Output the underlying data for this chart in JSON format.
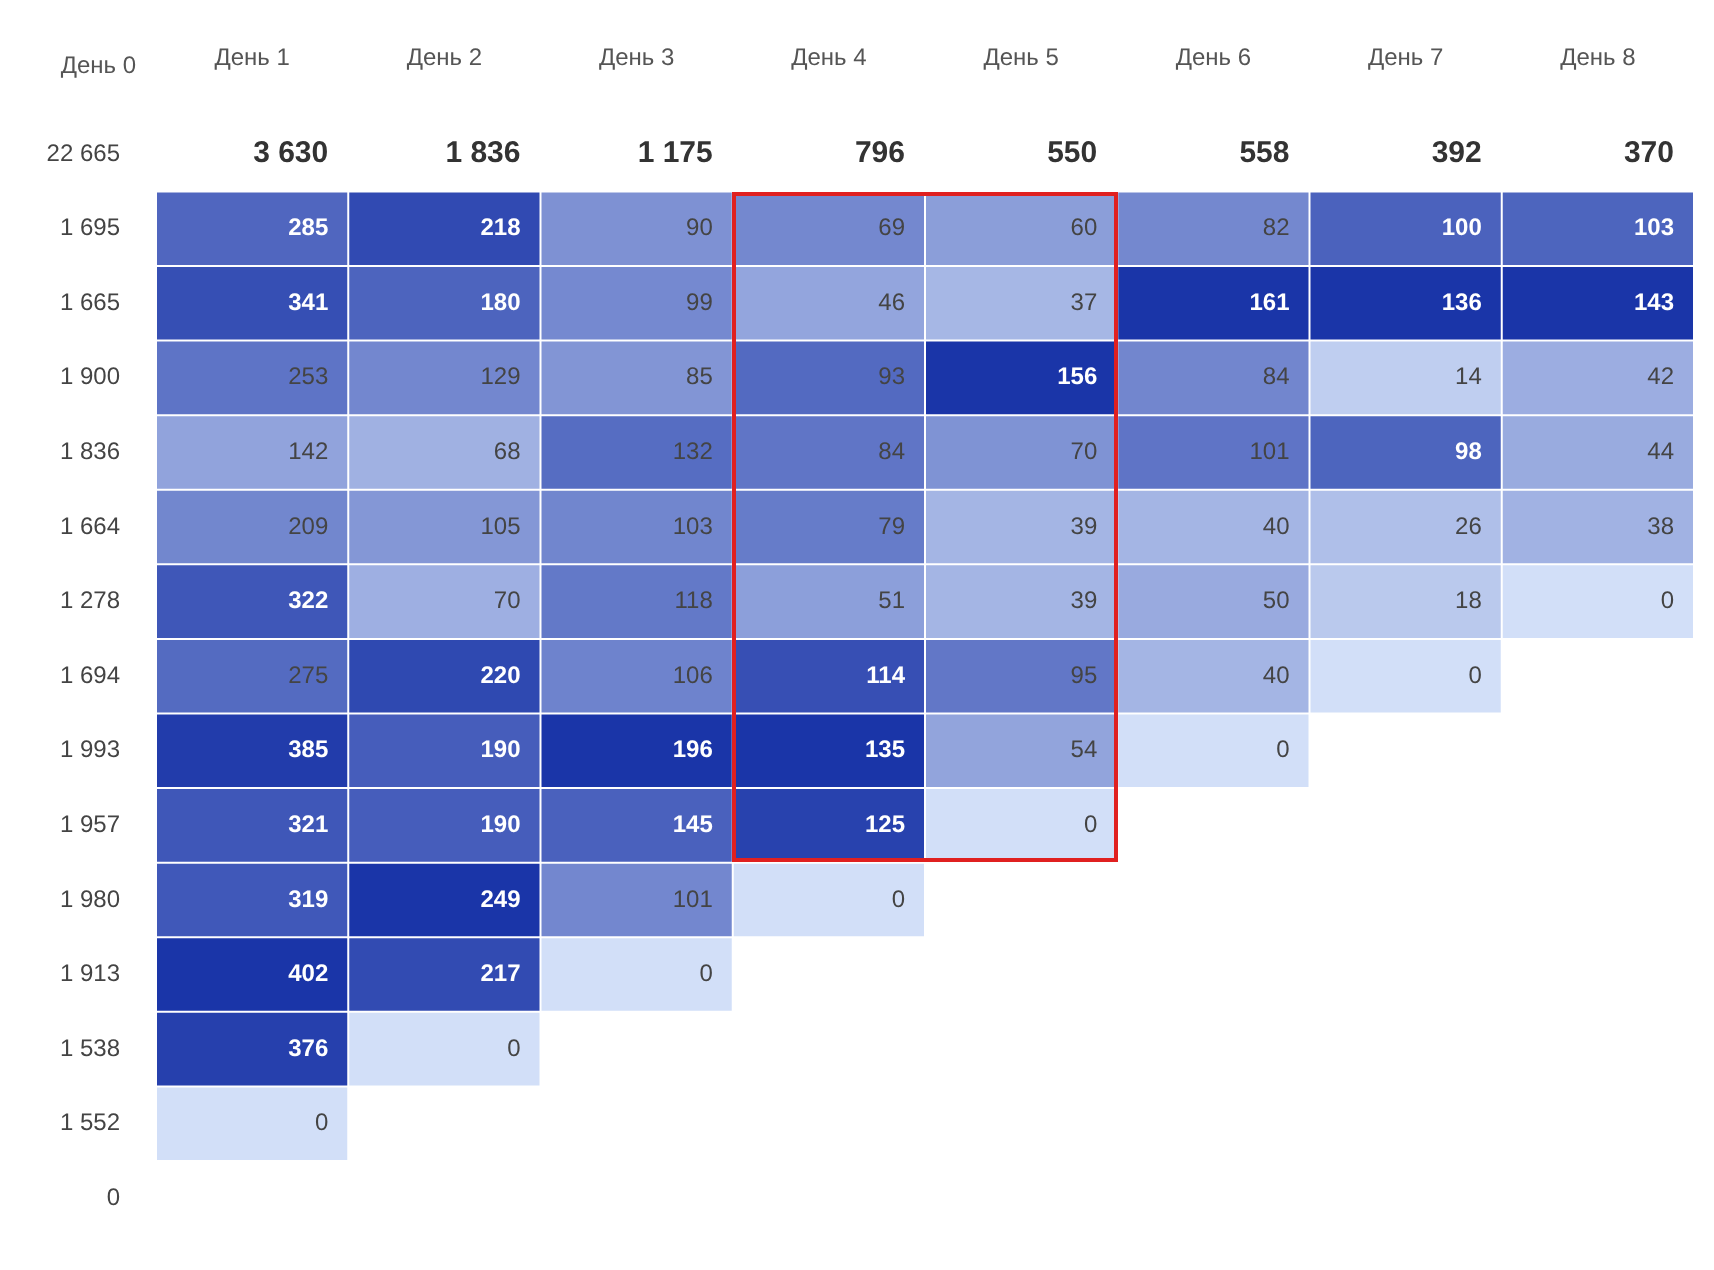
{
  "chart_data": {
    "type": "heatmap",
    "ylabel": "День 0",
    "categories": [
      "День 1",
      "День 2",
      "День 3",
      "День 4",
      "День 5",
      "День 6",
      "День 7",
      "День 8"
    ],
    "y_categories": [
      "22 665",
      "1 695",
      "1 665",
      "1 900",
      "1 836",
      "1 664",
      "1 278",
      "1 694",
      "1 993",
      "1 957",
      "1 980",
      "1 913",
      "1 538",
      "1 552",
      "0"
    ],
    "cells": [
      [
        null,
        null,
        null,
        null,
        null,
        null,
        null,
        null
      ],
      [
        285,
        218,
        90,
        69,
        60,
        82,
        100,
        103
      ],
      [
        341,
        180,
        99,
        46,
        37,
        161,
        136,
        143
      ],
      [
        253,
        129,
        85,
        93,
        156,
        84,
        14,
        42
      ],
      [
        142,
        68,
        132,
        84,
        70,
        101,
        98,
        44
      ],
      [
        209,
        105,
        103,
        79,
        39,
        40,
        26,
        38
      ],
      [
        322,
        70,
        118,
        51,
        39,
        50,
        18,
        0
      ],
      [
        275,
        220,
        106,
        114,
        95,
        40,
        0,
        null
      ],
      [
        385,
        190,
        196,
        135,
        54,
        0,
        null,
        null
      ],
      [
        321,
        190,
        145,
        125,
        0,
        null,
        null,
        null
      ],
      [
        319,
        249,
        101,
        0,
        null,
        null,
        null,
        null
      ],
      [
        402,
        217,
        0,
        null,
        null,
        null,
        null,
        null
      ],
      [
        376,
        0,
        null,
        null,
        null,
        null,
        null,
        null
      ],
      [
        0,
        null,
        null,
        null,
        null,
        null,
        null,
        null
      ],
      [
        null,
        null,
        null,
        null,
        null,
        null,
        null,
        null
      ]
    ],
    "cell_labels": [
      [
        "3 630",
        "1 836",
        "1 175",
        "796",
        "550",
        "558",
        "392",
        "370"
      ],
      [
        "285",
        "218",
        "90",
        "69",
        "60",
        "82",
        "100",
        "103"
      ],
      [
        "341",
        "180",
        "99",
        "46",
        "37",
        "161",
        "136",
        "143"
      ],
      [
        "253",
        "129",
        "85",
        "93",
        "156",
        "84",
        "14",
        "42"
      ],
      [
        "142",
        "68",
        "132",
        "84",
        "70",
        "101",
        "98",
        "44"
      ],
      [
        "209",
        "105",
        "103",
        "79",
        "39",
        "40",
        "26",
        "38"
      ],
      [
        "322",
        "70",
        "118",
        "51",
        "39",
        "50",
        "18",
        "0"
      ],
      [
        "275",
        "220",
        "106",
        "114",
        "95",
        "40",
        "0",
        null
      ],
      [
        "385",
        "190",
        "196",
        "135",
        "54",
        "0",
        null,
        null
      ],
      [
        "321",
        "190",
        "145",
        "125",
        "0",
        null,
        null,
        null
      ],
      [
        "319",
        "249",
        "101",
        "0",
        null,
        null,
        null,
        null
      ],
      [
        "402",
        "217",
        "0",
        null,
        null,
        null,
        null,
        null
      ],
      [
        "376",
        "0",
        null,
        null,
        null,
        null,
        null,
        null
      ],
      [
        "0",
        null,
        null,
        null,
        null,
        null,
        null,
        null
      ],
      [
        null,
        null,
        null,
        null,
        null,
        null,
        null,
        null
      ]
    ]
  }
}
